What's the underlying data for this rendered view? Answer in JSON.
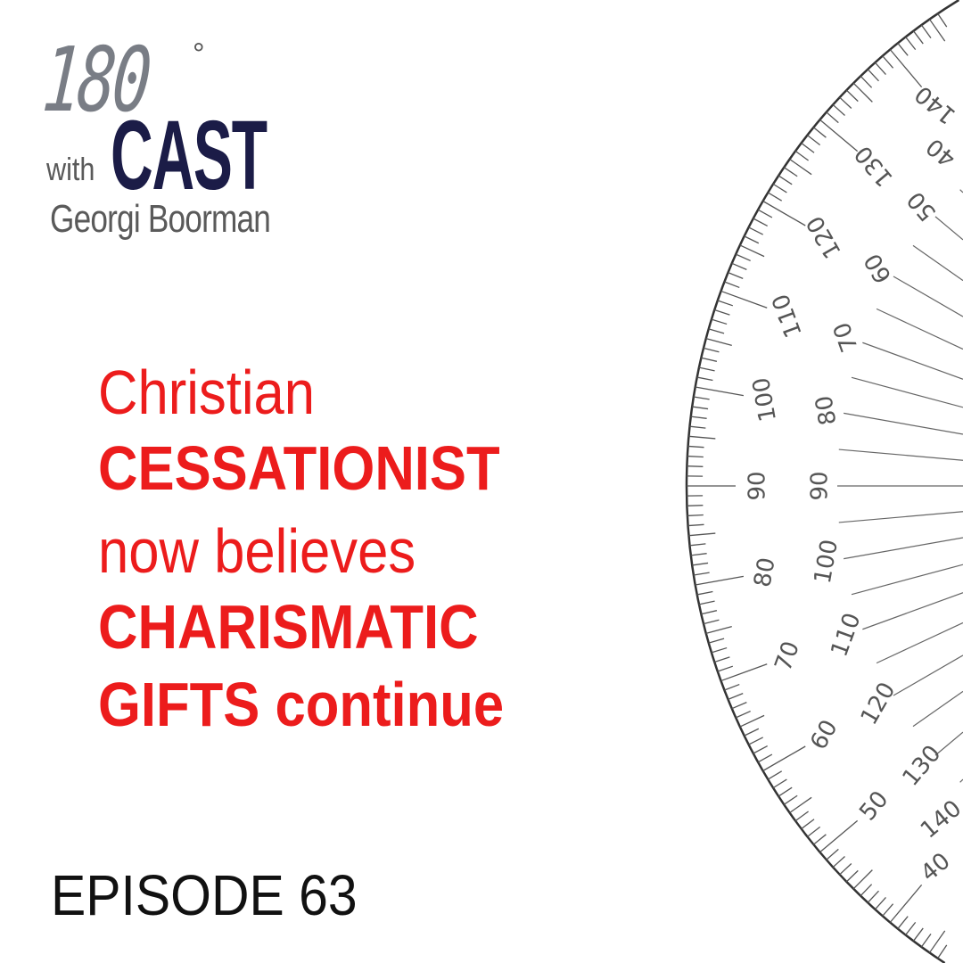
{
  "logo": {
    "number": "180",
    "degree": "°",
    "cast": "CAST",
    "with": "with",
    "host": "Georgi Boorman",
    "colors": {
      "cast": "#1b1c47",
      "number": "#6b7078"
    }
  },
  "headline": {
    "lines": [
      {
        "text": "Christian",
        "weight": "light"
      },
      {
        "text": "CESSATIONIST",
        "weight": "bold"
      },
      {
        "text": "now believes",
        "weight": "light"
      },
      {
        "text": "CHARISMATIC",
        "weight": "bold"
      },
      {
        "text": "GIFTS continue",
        "weight": "bold"
      }
    ],
    "color": "#ec1c1c"
  },
  "episode": {
    "label": "EPISODE 63"
  },
  "protractor": {
    "icon": "protractor-graphic",
    "outer_labels": [
      40,
      50,
      60,
      70,
      80,
      90,
      100,
      110,
      120,
      130,
      140
    ],
    "inner_labels": [
      140,
      130,
      120,
      110,
      100,
      90,
      80,
      70,
      60,
      50,
      40
    ]
  }
}
